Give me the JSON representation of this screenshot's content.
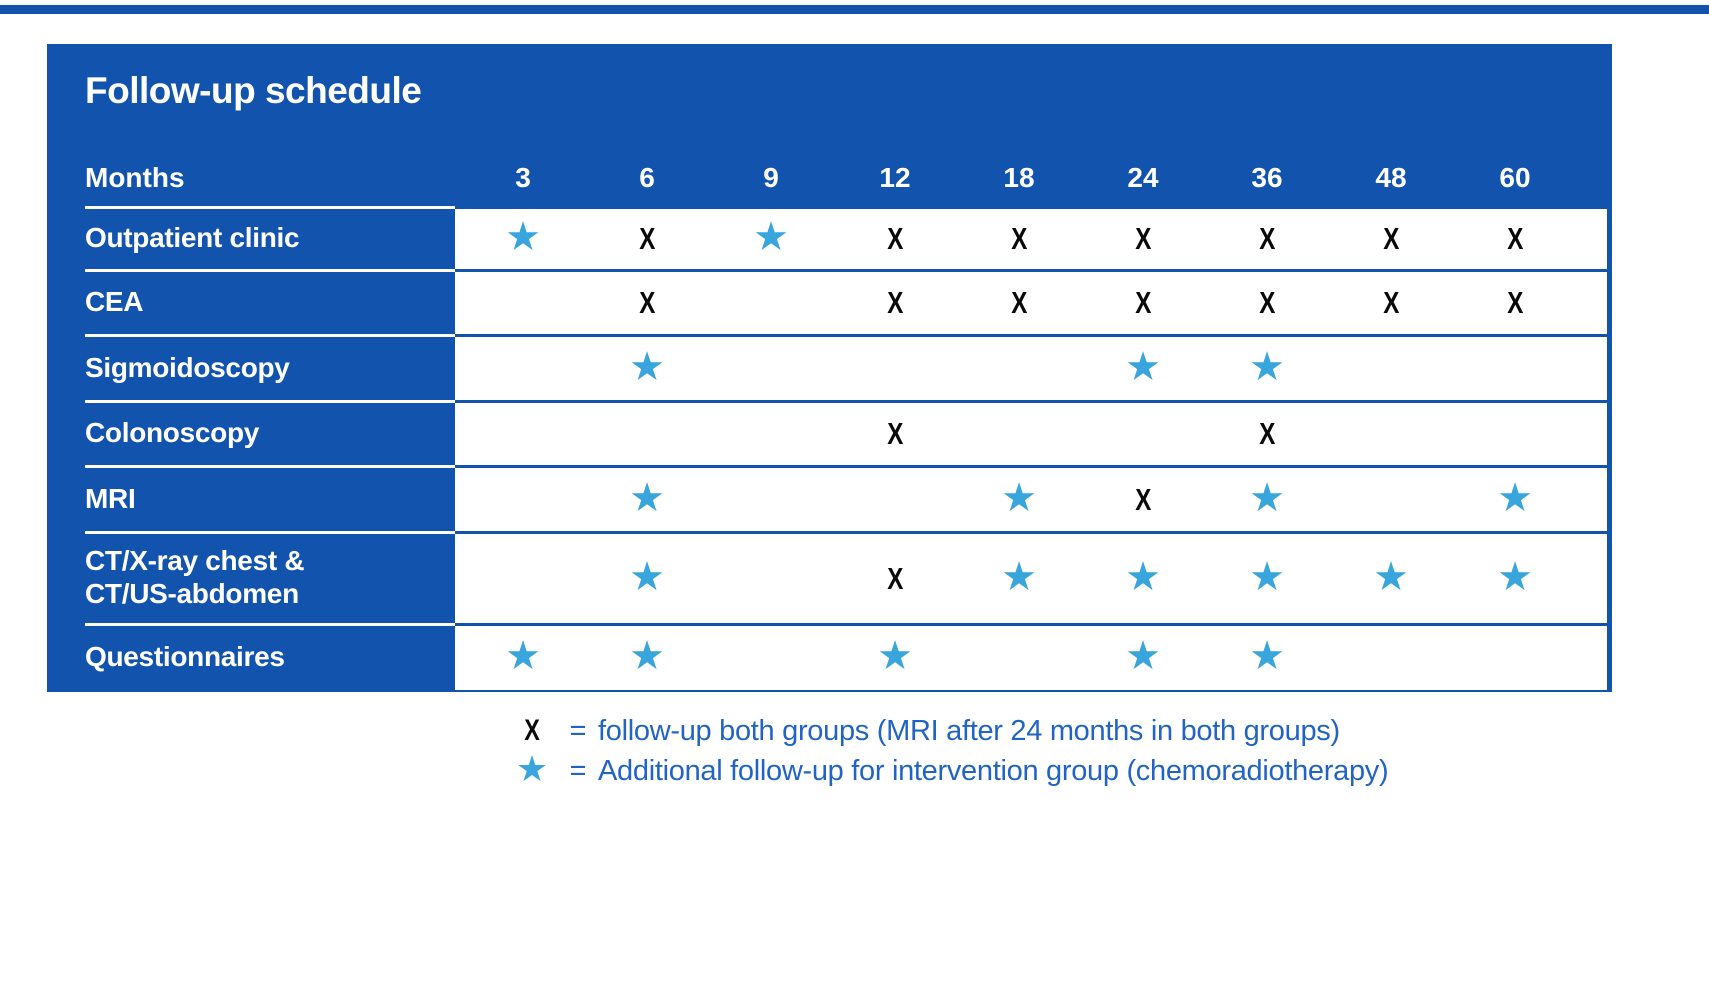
{
  "chart_data": {
    "type": "table",
    "title": "Follow-up schedule",
    "columns_label": "Months",
    "columns": [
      "3",
      "6",
      "9",
      "12",
      "18",
      "24",
      "36",
      "48",
      "60"
    ],
    "rows": [
      {
        "label": "Outpatient clinic",
        "cells": [
          "★",
          "X",
          "★",
          "X",
          "X",
          "X",
          "X",
          "X",
          "X"
        ]
      },
      {
        "label": "CEA",
        "cells": [
          "",
          "X",
          "",
          "X",
          "X",
          "X",
          "X",
          "X",
          "X"
        ]
      },
      {
        "label": "Sigmoidoscopy",
        "cells": [
          "",
          "★",
          "",
          "",
          "",
          "★",
          "★",
          "",
          ""
        ]
      },
      {
        "label": "Colonoscopy",
        "cells": [
          "",
          "",
          "",
          "X",
          "",
          "",
          "X",
          "",
          ""
        ]
      },
      {
        "label": "MRI",
        "cells": [
          "",
          "★",
          "",
          "",
          "★",
          "X",
          "★",
          "",
          "★"
        ]
      },
      {
        "label": "CT/X-ray chest &\nCT/US-abdomen",
        "cells": [
          "",
          "★",
          "",
          "X",
          "★",
          "★",
          "★",
          "★",
          "★"
        ]
      },
      {
        "label": "Questionnaires",
        "cells": [
          "★",
          "★",
          "",
          "★",
          "",
          "★",
          "★",
          "",
          ""
        ]
      }
    ],
    "legend": [
      {
        "symbol": "X",
        "equals": "=",
        "text": "follow-up both groups (MRI after 24 months in both groups)"
      },
      {
        "symbol": "★",
        "equals": "=",
        "text": "Additional follow-up for intervention group (chemoradiotherapy)"
      }
    ],
    "colors": {
      "table_blue": "#1253ad",
      "star_blue": "#38a5dd",
      "x_mark_black": "#0a0a0a",
      "legend_text_blue": "#2264c5",
      "background_white": "#ffffff"
    }
  }
}
